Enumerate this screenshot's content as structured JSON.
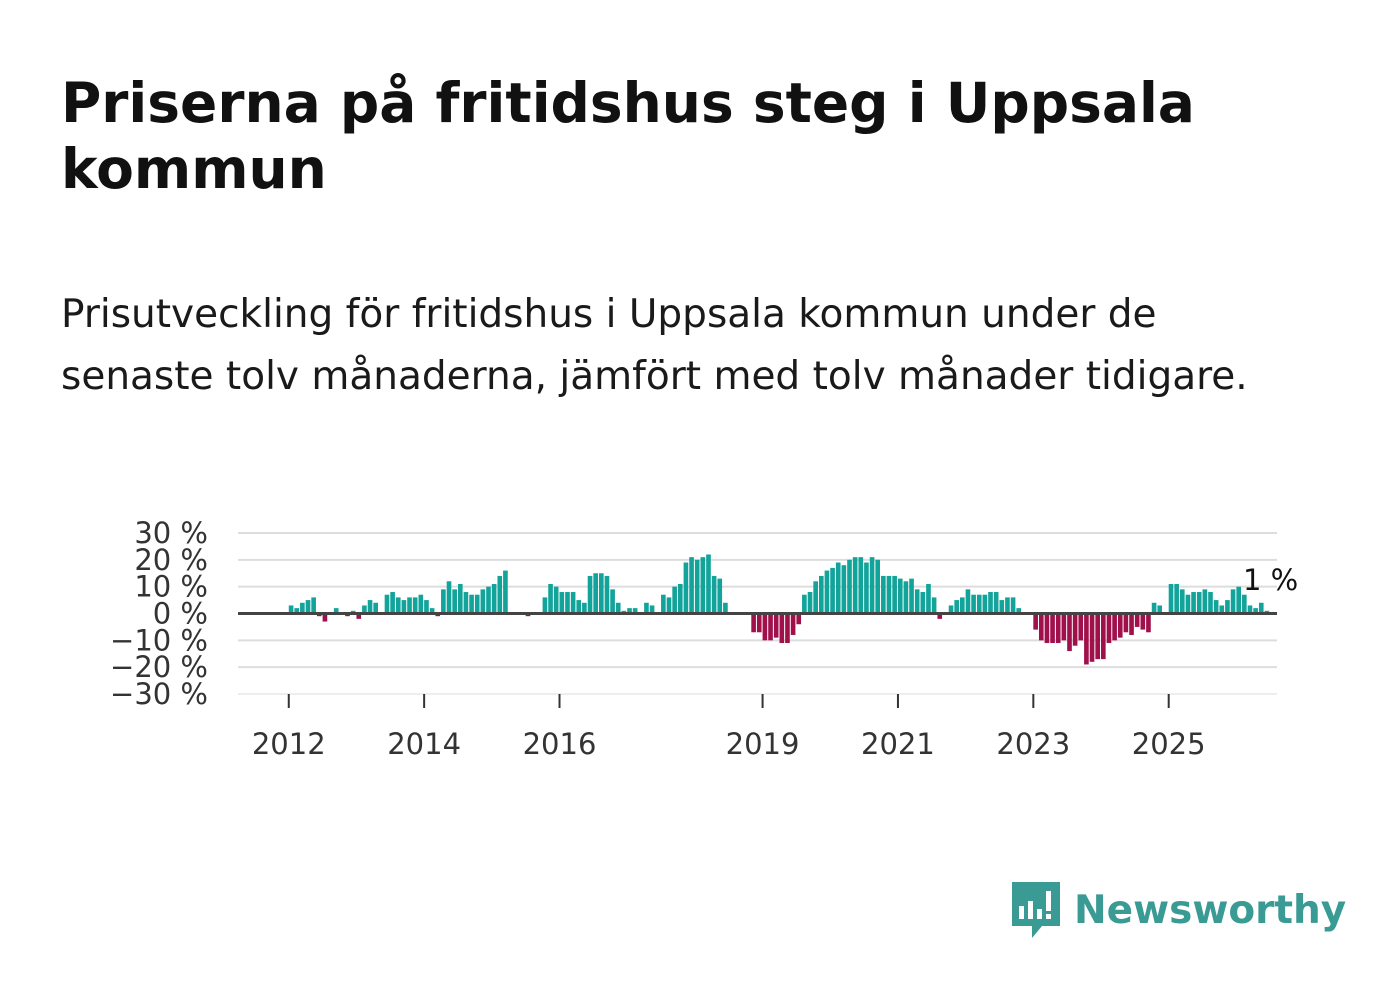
{
  "title": "Priserna på fritidshus steg i Uppsala kommun",
  "subtitle": "Prisutveckling för fritidshus i Uppsala kommun under de senaste tolv månaderna, jämfört med tolv månader tidigare.",
  "brand": {
    "name": "Newsworthy",
    "color": "#3a9a94"
  },
  "colors": {
    "positive": "#12a39a",
    "negative": "#a0104a",
    "grid": "#dddddd",
    "zero_line": "#444444"
  },
  "chart_data": {
    "type": "bar",
    "title": "Priserna på fritidshus steg i Uppsala kommun",
    "xlabel": "",
    "ylabel": "",
    "ylim": [
      -30,
      30
    ],
    "y_ticks": [
      30,
      20,
      10,
      0,
      -10,
      -20,
      -30
    ],
    "y_tick_labels": [
      "30 %",
      "20 %",
      "10 %",
      "0 %",
      "−10 %",
      "−20 %",
      "−30 %"
    ],
    "x_ticks": [
      2012,
      2014,
      2016,
      2019,
      2021,
      2023,
      2025
    ],
    "x_tick_labels": [
      "2012",
      "2014",
      "2016",
      "2019",
      "2021",
      "2023",
      "2025"
    ],
    "x_range": [
      2011.25,
      2026.6
    ],
    "last_value_label": "1 %",
    "series": [
      {
        "name": "Prisutveckling",
        "start_year": 2012,
        "start_month": 1,
        "frequency": "monthly",
        "values": [
          3,
          2,
          4,
          5,
          6,
          -1,
          -3,
          0,
          2,
          0,
          -1,
          1,
          -2,
          3,
          5,
          4,
          0,
          7,
          8,
          6,
          5,
          6,
          6,
          7,
          5,
          2,
          -1,
          9,
          12,
          9,
          11,
          8,
          7,
          7,
          9,
          10,
          11,
          14,
          16,
          0,
          0,
          0,
          -1,
          0,
          0,
          6,
          11,
          10,
          8,
          8,
          8,
          5,
          4,
          14,
          15,
          15,
          14,
          9,
          4,
          1,
          2,
          2,
          0,
          4,
          3,
          0,
          7,
          6,
          10,
          11,
          19,
          21,
          20,
          21,
          22,
          14,
          13,
          4,
          0,
          0,
          0,
          0,
          -7,
          -7,
          -10,
          -10,
          -9,
          -11,
          -11,
          -8,
          -4,
          7,
          8,
          12,
          14,
          16,
          17,
          19,
          18,
          20,
          21,
          21,
          19,
          21,
          20,
          14,
          14,
          14,
          13,
          12,
          13,
          9,
          8,
          11,
          6,
          -2,
          0,
          3,
          5,
          6,
          9,
          7,
          7,
          7,
          8,
          8,
          5,
          6,
          6,
          2,
          0,
          0,
          -6,
          -10,
          -11,
          -11,
          -11,
          -10,
          -14,
          -12,
          -10,
          -19,
          -18,
          -17,
          -17,
          -11,
          -10,
          -9,
          -7,
          -8,
          -5,
          -6,
          -7,
          4,
          3,
          0,
          11,
          11,
          9,
          7,
          8,
          8,
          9,
          8,
          5,
          3,
          5,
          9,
          10,
          7,
          3,
          2,
          4,
          1
        ]
      }
    ]
  }
}
